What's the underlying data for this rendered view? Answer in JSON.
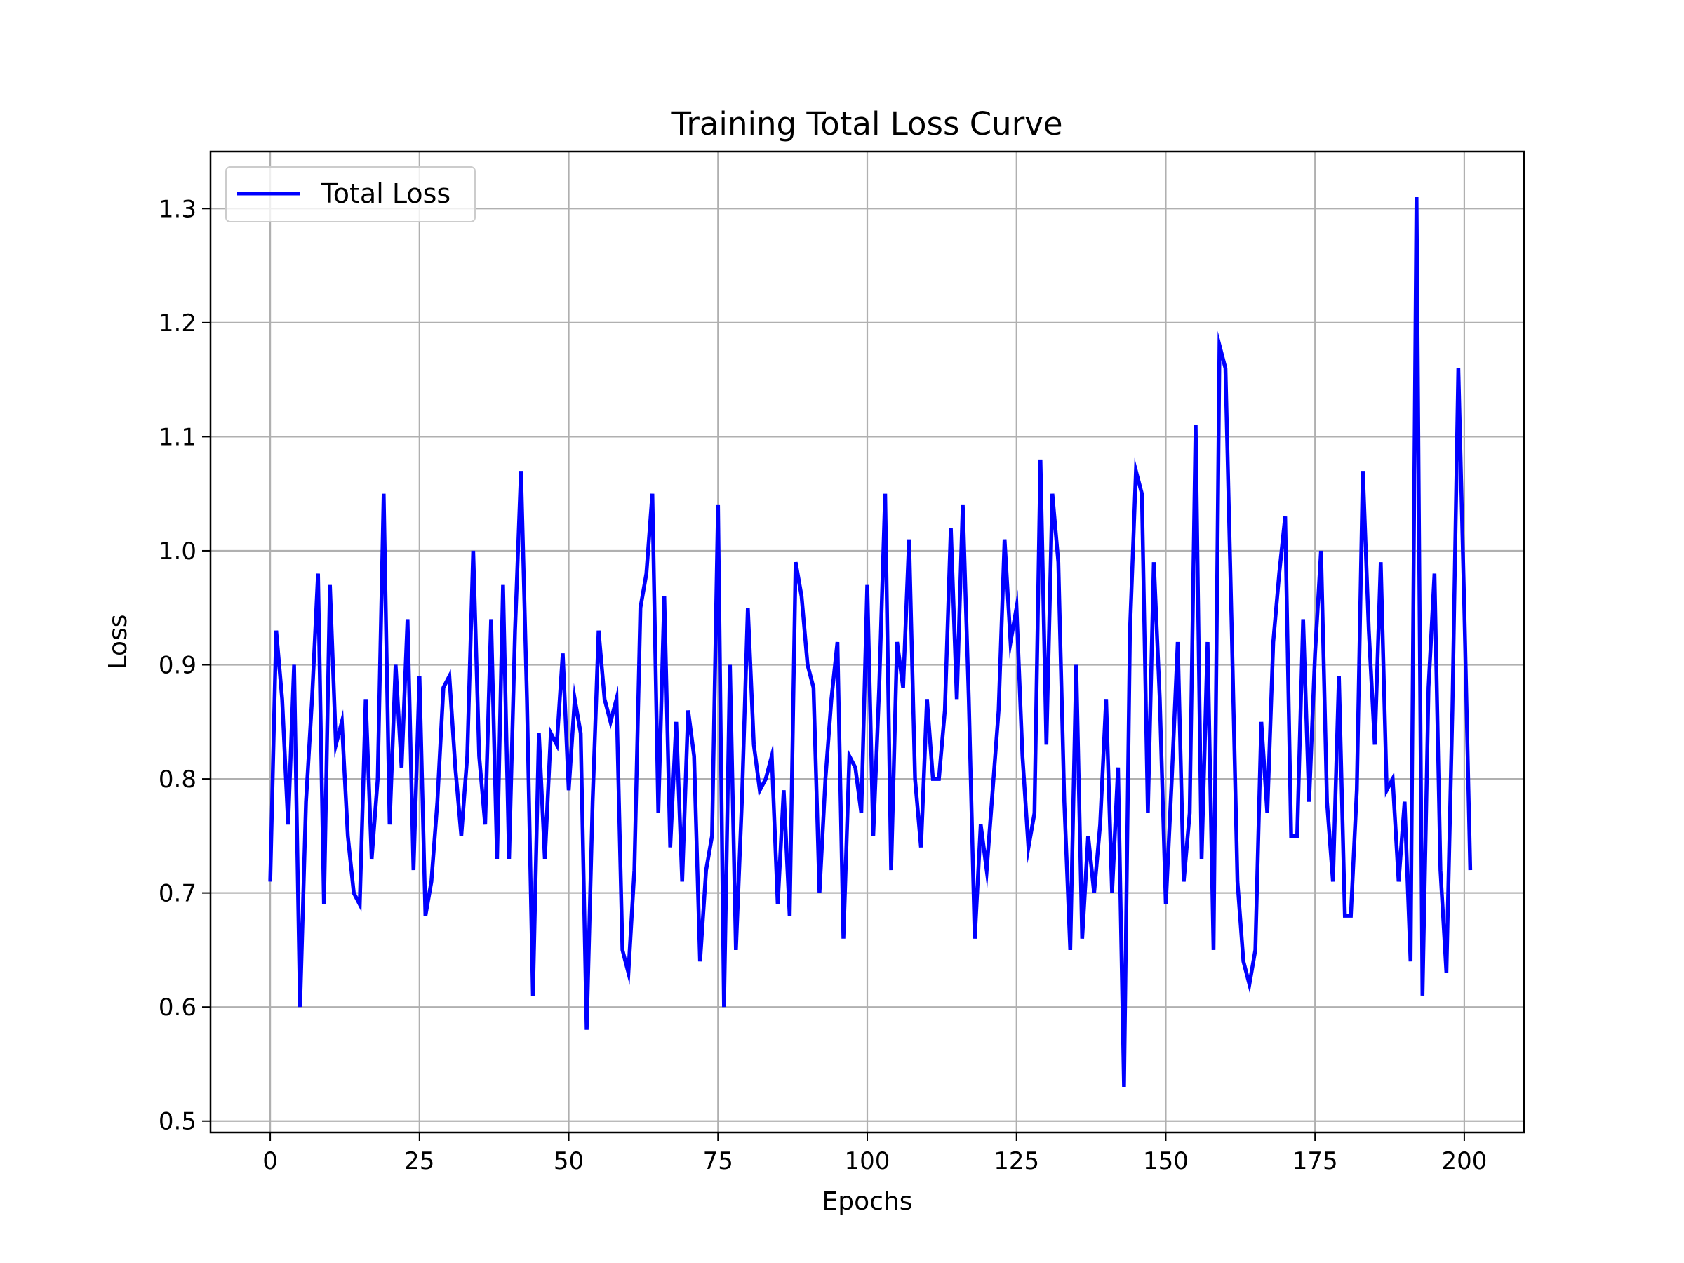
{
  "chart_data": {
    "type": "line",
    "title": "Training Total Loss Curve",
    "xlabel": "Epochs",
    "ylabel": "Loss",
    "xlim": [
      -10,
      210
    ],
    "ylim": [
      0.49,
      1.35
    ],
    "xticks": [
      0,
      25,
      50,
      75,
      100,
      125,
      150,
      175,
      200
    ],
    "yticks": [
      0.5,
      0.6,
      0.7,
      0.8,
      0.9,
      1.0,
      1.1,
      1.2,
      1.3
    ],
    "grid": true,
    "legend_position": "top-left",
    "series": [
      {
        "name": "Total Loss",
        "color": "#0000ff",
        "x": [
          0,
          1,
          2,
          3,
          4,
          5,
          6,
          7,
          8,
          9,
          10,
          11,
          12,
          13,
          14,
          15,
          16,
          17,
          18,
          19,
          20,
          21,
          22,
          23,
          24,
          25,
          26,
          27,
          28,
          29,
          30,
          31,
          32,
          33,
          34,
          35,
          36,
          37,
          38,
          39,
          40,
          41,
          42,
          43,
          44,
          45,
          46,
          47,
          48,
          49,
          50,
          51,
          52,
          53,
          54,
          55,
          56,
          57,
          58,
          59,
          60,
          61,
          62,
          63,
          64,
          65,
          66,
          67,
          68,
          69,
          70,
          71,
          72,
          73,
          74,
          75,
          76,
          77,
          78,
          79,
          80,
          81,
          82,
          83,
          84,
          85,
          86,
          87,
          88,
          89,
          90,
          91,
          92,
          93,
          94,
          95,
          96,
          97,
          98,
          99,
          100,
          101,
          102,
          103,
          104,
          105,
          106,
          107,
          108,
          109,
          110,
          111,
          112,
          113,
          114,
          115,
          116,
          117,
          118,
          119,
          120,
          121,
          122,
          123,
          124,
          125,
          126,
          127,
          128,
          129,
          130,
          131,
          132,
          133,
          134,
          135,
          136,
          137,
          138,
          139,
          140,
          141,
          142,
          143,
          144,
          145,
          146,
          147,
          148,
          149,
          150,
          151,
          152,
          153,
          154,
          155,
          156,
          157,
          158,
          159,
          160,
          161,
          162,
          163,
          164,
          165,
          166,
          167,
          168,
          169,
          170,
          171,
          172,
          173,
          174,
          175,
          176,
          177,
          178,
          179,
          180,
          181,
          182,
          183,
          184,
          185,
          186,
          187,
          188,
          189,
          190,
          191,
          192,
          193,
          194,
          195,
          196,
          197,
          198,
          199,
          200,
          201
        ],
        "y": [
          0.71,
          0.93,
          0.87,
          0.76,
          0.9,
          0.6,
          0.78,
          0.87,
          0.98,
          0.69,
          0.97,
          0.83,
          0.85,
          0.75,
          0.7,
          0.69,
          0.87,
          0.73,
          0.8,
          1.05,
          0.76,
          0.9,
          0.81,
          0.94,
          0.72,
          0.89,
          0.68,
          0.71,
          0.78,
          0.88,
          0.89,
          0.81,
          0.75,
          0.82,
          1.0,
          0.82,
          0.76,
          0.94,
          0.73,
          0.97,
          0.73,
          0.93,
          1.07,
          0.87,
          0.61,
          0.84,
          0.73,
          0.84,
          0.83,
          0.91,
          0.79,
          0.87,
          0.84,
          0.58,
          0.78,
          0.93,
          0.87,
          0.85,
          0.87,
          0.65,
          0.63,
          0.72,
          0.95,
          0.98,
          1.05,
          0.77,
          0.96,
          0.74,
          0.85,
          0.71,
          0.86,
          0.82,
          0.64,
          0.72,
          0.75,
          1.04,
          0.6,
          0.9,
          0.65,
          0.78,
          0.95,
          0.83,
          0.79,
          0.8,
          0.82,
          0.69,
          0.79,
          0.68,
          0.99,
          0.96,
          0.9,
          0.88,
          0.7,
          0.8,
          0.87,
          0.92,
          0.66,
          0.82,
          0.81,
          0.77,
          0.97,
          0.75,
          0.88,
          1.05,
          0.72,
          0.92,
          0.88,
          1.01,
          0.8,
          0.74,
          0.87,
          0.8,
          0.8,
          0.86,
          1.02,
          0.87,
          1.04,
          0.87,
          0.66,
          0.76,
          0.72,
          0.79,
          0.86,
          1.01,
          0.92,
          0.95,
          0.82,
          0.74,
          0.77,
          1.08,
          0.83,
          1.05,
          0.99,
          0.78,
          0.65,
          0.9,
          0.66,
          0.75,
          0.7,
          0.76,
          0.87,
          0.7,
          0.81,
          0.53,
          0.93,
          1.07,
          1.05,
          0.77,
          0.99,
          0.87,
          0.69,
          0.8,
          0.92,
          0.71,
          0.77,
          1.11,
          0.73,
          0.92,
          0.65,
          1.18,
          1.16,
          0.94,
          0.71,
          0.64,
          0.62,
          0.65,
          0.85,
          0.77,
          0.92,
          0.98,
          1.03,
          0.75,
          0.75,
          0.94,
          0.78,
          0.91,
          1.0,
          0.78,
          0.71,
          0.89,
          0.68,
          0.68,
          0.79,
          1.07,
          0.93,
          0.83,
          0.99,
          0.79,
          0.8,
          0.71,
          0.78,
          0.64,
          1.31,
          0.61,
          0.88,
          0.98,
          0.72,
          0.63,
          0.86,
          1.16,
          0.95,
          0.72
        ]
      }
    ]
  }
}
